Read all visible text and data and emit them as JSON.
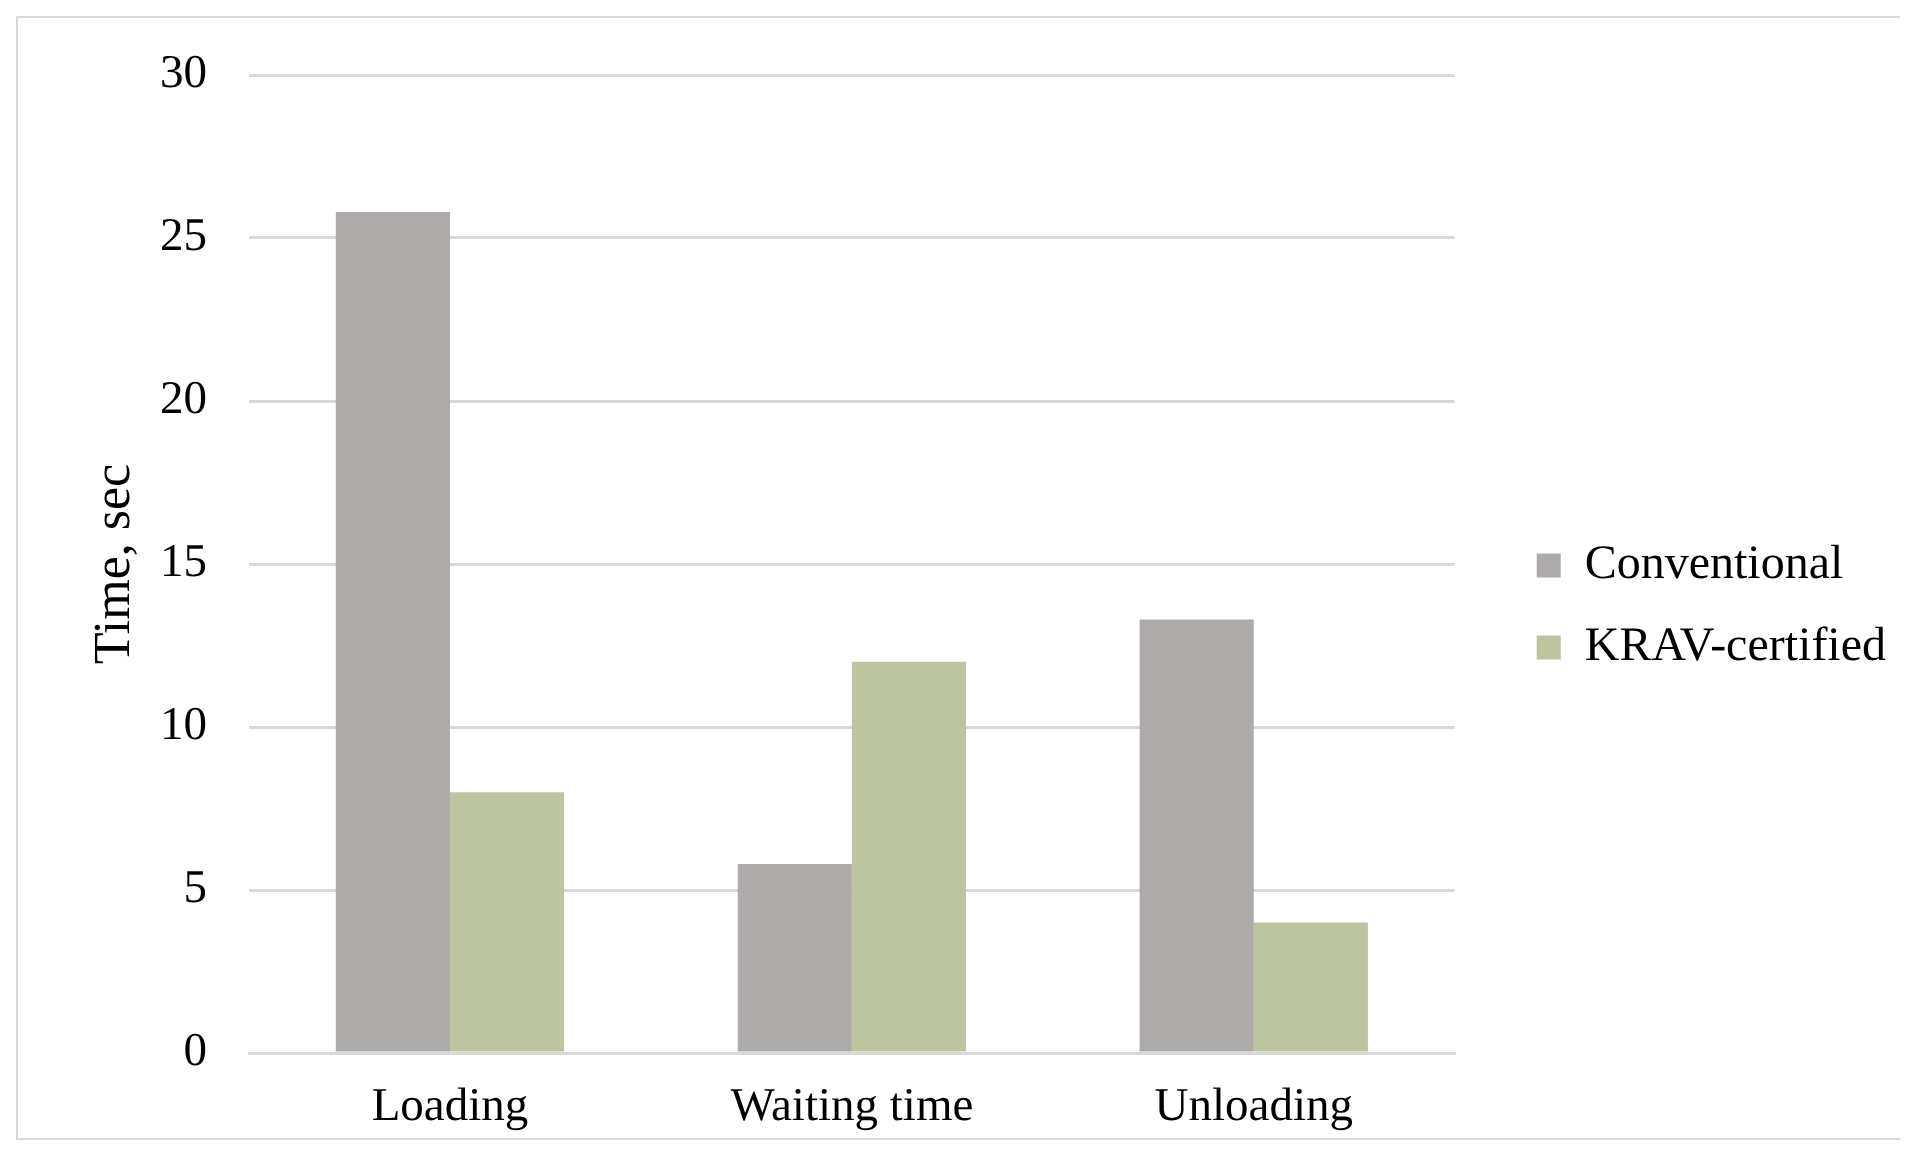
{
  "chart_data": {
    "type": "bar",
    "ylabel": "Time, sec",
    "categories": [
      "Loading",
      "Waiting time",
      "Unloading"
    ],
    "series": [
      {
        "name": "Conventional",
        "color": "#aeaaaa",
        "values": [
          25.8,
          5.8,
          13.3
        ]
      },
      {
        "name": "KRAV-certified",
        "color": "#bdc5a0",
        "values": [
          8.0,
          12.0,
          4.0
        ]
      }
    ],
    "ylim": [
      0,
      30
    ],
    "yticks": [
      0,
      5,
      10,
      15,
      20,
      25,
      30
    ],
    "grid": "y",
    "legend": "right"
  }
}
